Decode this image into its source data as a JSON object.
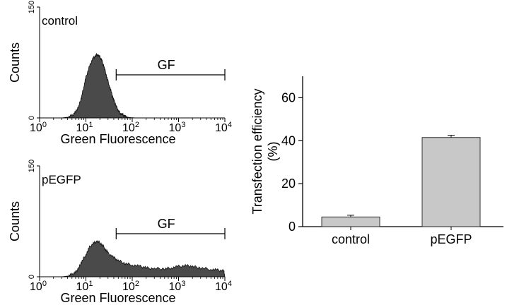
{
  "chart_data": [
    {
      "type": "area",
      "panel_label": "control",
      "xlabel": "Green Fluorescence",
      "ylabel": "Counts",
      "x_scale": "log",
      "xlim": [
        1,
        10000
      ],
      "ylim": [
        0,
        150
      ],
      "x_ticks": [
        "0",
        "1",
        "2",
        "3",
        "4"
      ],
      "x_tick_base": "10",
      "y_ticks": [
        "0",
        "150"
      ],
      "gate": {
        "label": "GF",
        "from": 45,
        "to": 10000
      },
      "x": [
        3,
        4,
        5,
        6,
        7,
        8,
        9,
        10,
        12,
        14,
        16,
        18,
        20,
        22,
        25,
        28,
        32,
        36,
        40,
        45,
        50,
        56,
        63,
        70,
        80,
        90,
        100,
        120
      ],
      "values": [
        0,
        1,
        3,
        8,
        16,
        28,
        42,
        55,
        70,
        80,
        84,
        86,
        82,
        78,
        68,
        56,
        44,
        33,
        24,
        16,
        10,
        6,
        4,
        2,
        1,
        0.5,
        0.3,
        0
      ]
    },
    {
      "type": "area",
      "panel_label": "pEGFP",
      "xlabel": "Green Fluorescence",
      "ylabel": "Counts",
      "x_scale": "log",
      "xlim": [
        1,
        10000
      ],
      "ylim": [
        0,
        150
      ],
      "x_ticks": [
        "0",
        "1",
        "2",
        "3",
        "4"
      ],
      "x_tick_base": "10",
      "y_ticks": [
        "0",
        "150"
      ],
      "gate": {
        "label": "GF",
        "from": 45,
        "to": 10000
      },
      "x": [
        3,
        4,
        5,
        6,
        7,
        8,
        10,
        12,
        15,
        18,
        22,
        26,
        30,
        40,
        50,
        70,
        100,
        150,
        200,
        300,
        500,
        700,
        1000,
        1500,
        2000,
        3000,
        5000,
        7000,
        9500,
        10000
      ],
      "values": [
        0,
        1,
        3,
        6,
        12,
        20,
        30,
        40,
        46,
        48,
        44,
        38,
        32,
        26,
        22,
        18,
        16,
        14,
        12,
        11,
        11,
        12,
        14,
        15,
        14,
        12,
        10,
        9,
        8,
        0
      ]
    },
    {
      "type": "bar",
      "categories": [
        "control",
        "pEGFP"
      ],
      "values": [
        4.5,
        41.5
      ],
      "errors": [
        0.8,
        1.0
      ],
      "ylabel": "Transfection efficiency (%)",
      "ylim": [
        0,
        70
      ],
      "y_ticks": [
        0,
        20,
        40,
        60
      ]
    }
  ]
}
